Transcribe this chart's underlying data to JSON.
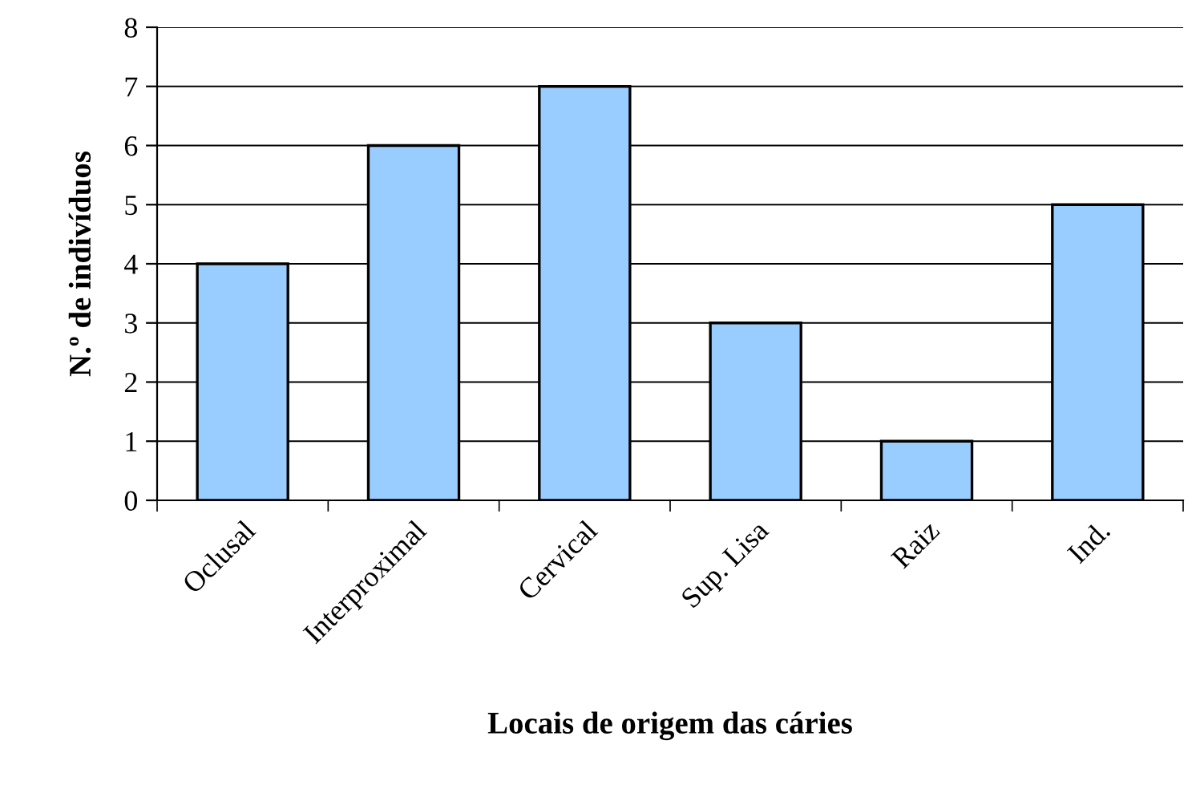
{
  "chart_data": {
    "type": "bar",
    "xlabel": "Locais de origem das cáries",
    "ylabel": "N.º de indivíduos",
    "categories": [
      "Oclusal",
      "Interproximal",
      "Cervical",
      "Sup. Lisa",
      "Raiz",
      "Ind."
    ],
    "values": [
      4,
      6,
      7,
      3,
      1,
      5
    ],
    "color": "#99ccff",
    "ylim": [
      0,
      8
    ],
    "yticks": [
      0,
      1,
      2,
      3,
      4,
      5,
      6,
      7,
      8
    ],
    "grid": "y",
    "legend": false
  }
}
